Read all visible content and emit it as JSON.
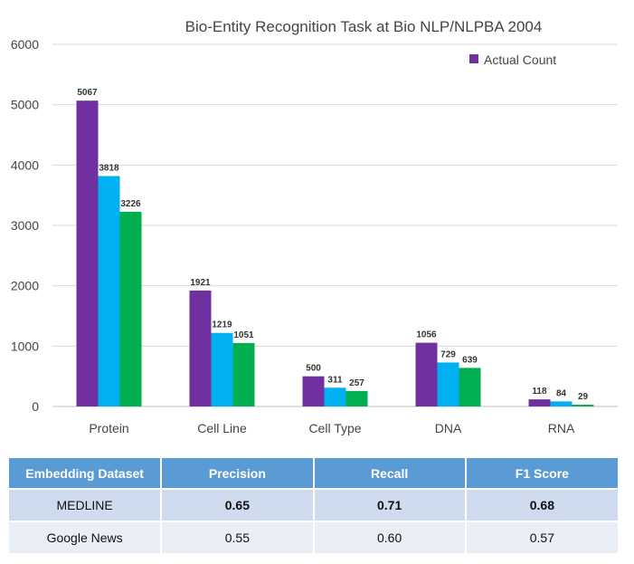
{
  "chart_data": {
    "type": "bar",
    "title": "Bio-Entity Recognition Task at Bio NLP/NLPBA 2004",
    "categories": [
      "Protein",
      "Cell Line",
      "Cell Type",
      "DNA",
      "RNA"
    ],
    "series": [
      {
        "name": "Actual Count",
        "color": "#7030a0",
        "values": [
          5067,
          1921,
          500,
          1056,
          118
        ]
      },
      {
        "color": "#00b0f0",
        "values": [
          3818,
          1219,
          311,
          729,
          84
        ]
      },
      {
        "color": "#00b050",
        "values": [
          3226,
          1051,
          257,
          639,
          29
        ]
      }
    ],
    "ylim": [
      0,
      6000
    ],
    "yticks": [
      0,
      1000,
      2000,
      3000,
      4000,
      5000,
      6000
    ],
    "grid": true,
    "legend": "top-right"
  },
  "table": {
    "headers": [
      "Embedding Dataset",
      "Precision",
      "Recall",
      "F1 Score"
    ],
    "rows": [
      [
        "MEDLINE",
        "0.65",
        "0.71",
        "0.68"
      ],
      [
        "Google News",
        "0.55",
        "0.60",
        "0.57"
      ]
    ],
    "header_color": "#5b9bd5"
  }
}
